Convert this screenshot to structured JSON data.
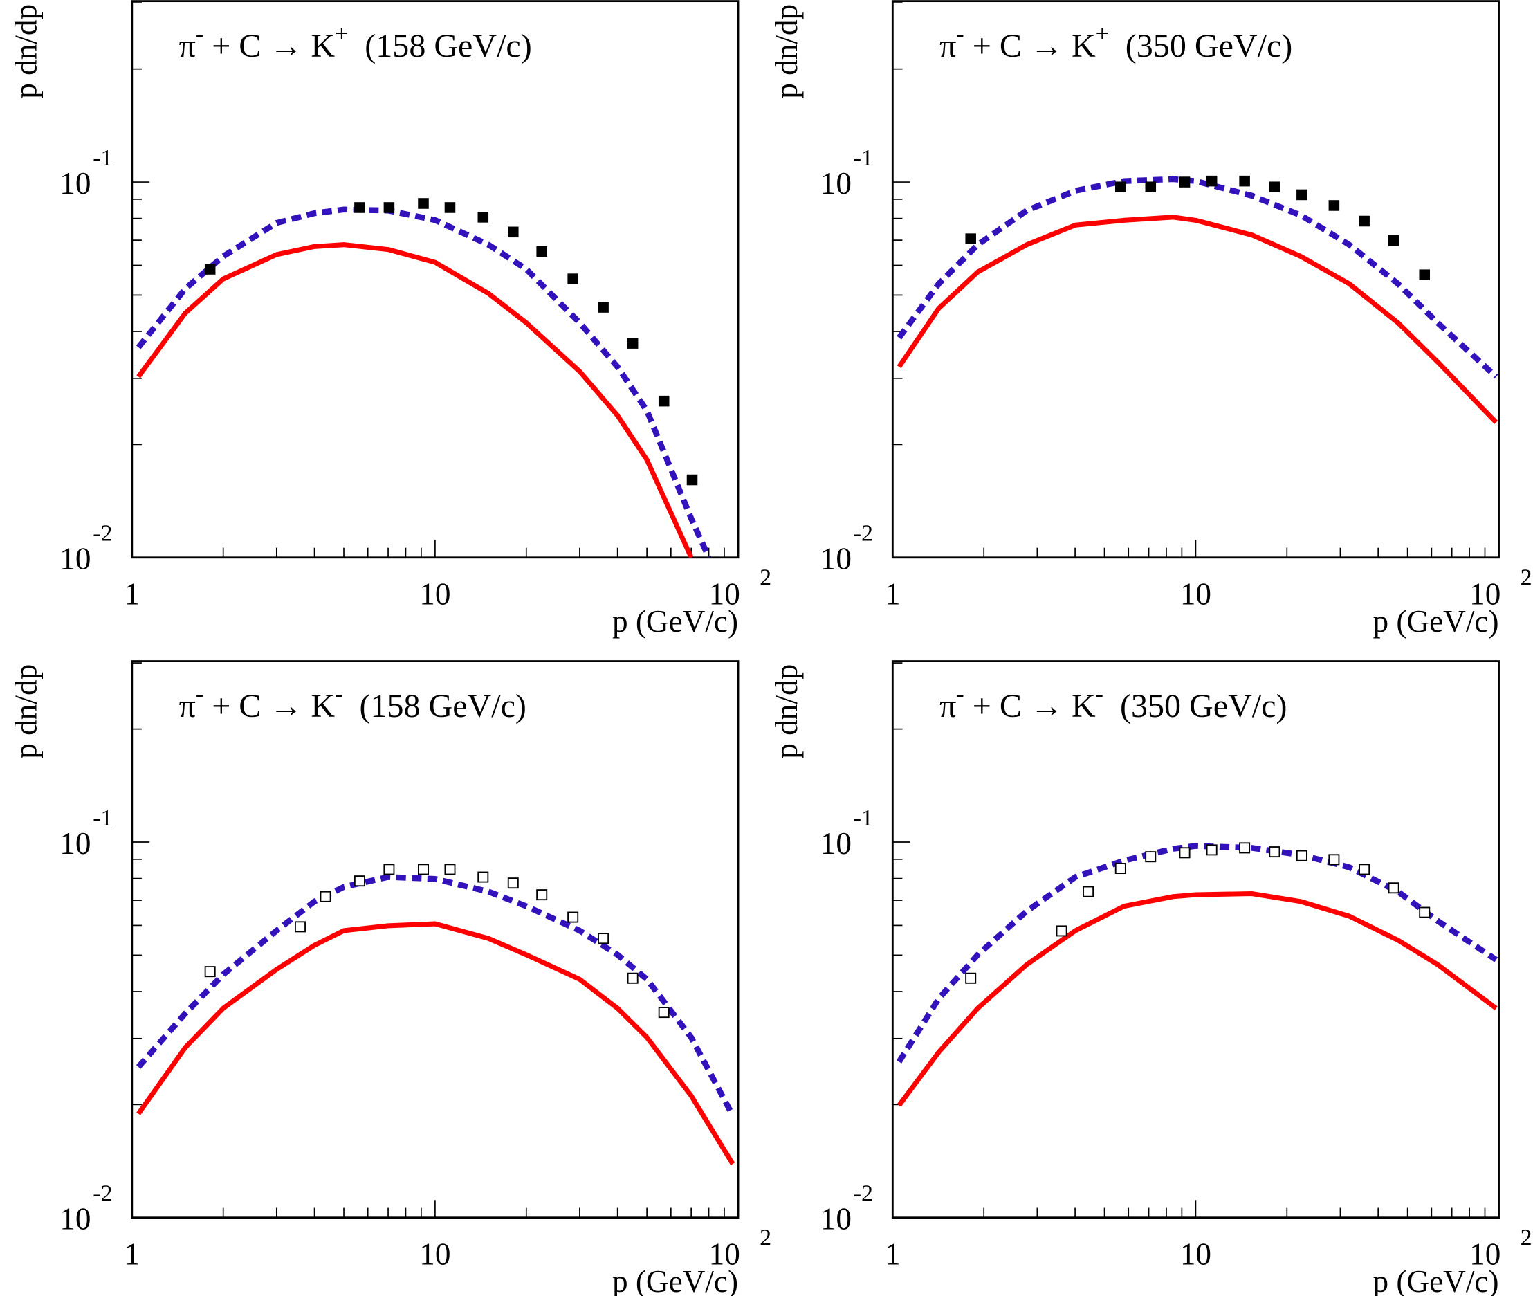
{
  "colors": {
    "solid_curve": "#ff0000",
    "dashed_curve": "#3311bb",
    "points": "#000000",
    "frame": "#000000"
  },
  "chart_data": [
    {
      "type": "line",
      "title": {
        "base1": "π",
        "sup1": "-",
        "mid": " + C → K",
        "sup2": "+",
        "tail": "  (158 GeV/c)"
      },
      "xlabel": "p  (GeV/c)",
      "ylabel": "p dn/dp",
      "xscale": "log",
      "yscale": "log",
      "xlim": [
        1,
        100
      ],
      "ylim": [
        0.01,
        0.305
      ],
      "xticks": [
        {
          "base": "1",
          "exp": ""
        },
        {
          "base": "10",
          "exp": ""
        },
        {
          "base": "10",
          "exp": "2"
        }
      ],
      "yticks": [
        {
          "base": "10",
          "exp": "-1"
        },
        {
          "base": "10",
          "exp": "-2"
        }
      ],
      "marker": "filled-square",
      "points": {
        "x": [
          1.81,
          5.64,
          7.05,
          9.15,
          11.2,
          14.4,
          18.1,
          22.5,
          28.5,
          35.9,
          44.9,
          56.9,
          70.5
        ],
        "y": [
          0.0586,
          0.0855,
          0.0855,
          0.0877,
          0.0855,
          0.0806,
          0.0736,
          0.0653,
          0.0552,
          0.0464,
          0.0372,
          0.0261,
          0.0161
        ]
      },
      "solid_curve": {
        "x": [
          1.05,
          1.5,
          2,
          3,
          4,
          5,
          7,
          10,
          15,
          20,
          30,
          40,
          50,
          70
        ],
        "y": [
          0.0303,
          0.0448,
          0.0552,
          0.0641,
          0.0673,
          0.0681,
          0.0661,
          0.0611,
          0.0505,
          0.0422,
          0.0313,
          0.0239,
          0.0182,
          0.01
        ]
      },
      "dashed_curve": {
        "x": [
          1.05,
          1.5,
          2,
          3,
          4,
          5,
          7,
          10,
          15,
          20,
          30,
          40,
          50,
          70,
          80
        ],
        "y": [
          0.0363,
          0.052,
          0.0634,
          0.0778,
          0.0826,
          0.0845,
          0.084,
          0.0792,
          0.0681,
          0.0586,
          0.0422,
          0.0322,
          0.0246,
          0.0127,
          0.01
        ]
      }
    },
    {
      "type": "line",
      "title": {
        "base1": "π",
        "sup1": "-",
        "mid": " + C → K",
        "sup2": "+",
        "tail": "  (350 GeV/c)"
      },
      "xlabel": "p  (GeV/c)",
      "ylabel": "p dn/dp",
      "xscale": "log",
      "yscale": "log",
      "xlim": [
        1,
        100
      ],
      "ylim": [
        0.01,
        0.305
      ],
      "xticks": [
        {
          "base": "1",
          "exp": ""
        },
        {
          "base": "10",
          "exp": ""
        },
        {
          "base": "10",
          "exp": "2"
        }
      ],
      "yticks": [
        {
          "base": "10",
          "exp": "-1"
        },
        {
          "base": "10",
          "exp": "-2"
        }
      ],
      "marker": "filled-square",
      "points": {
        "x": [
          1.81,
          5.65,
          7.1,
          9.2,
          11.3,
          14.5,
          18.2,
          22.4,
          28.6,
          36,
          45,
          56.9
        ],
        "y": [
          0.0706,
          0.097,
          0.097,
          0.1,
          0.1006,
          0.1006,
          0.097,
          0.0925,
          0.0866,
          0.0787,
          0.0698,
          0.0566
        ]
      },
      "solid_curve": {
        "x": [
          1.05,
          1.42,
          1.91,
          2.77,
          4.01,
          5.8,
          8.43,
          10,
          15.3,
          22.2,
          32.1,
          46.5,
          62.8,
          98
        ],
        "y": [
          0.0322,
          0.0461,
          0.0576,
          0.0681,
          0.0768,
          0.0791,
          0.0806,
          0.0791,
          0.0723,
          0.0634,
          0.0536,
          0.0422,
          0.0332,
          0.0229
        ]
      },
      "dashed_curve": {
        "x": [
          1.05,
          1.42,
          1.91,
          2.77,
          4.01,
          5.8,
          8.43,
          10,
          15.3,
          22.2,
          32.1,
          46.5,
          62.8,
          98
        ],
        "y": [
          0.0385,
          0.0536,
          0.0681,
          0.084,
          0.0948,
          0.1006,
          0.1018,
          0.1006,
          0.092,
          0.0816,
          0.0681,
          0.0536,
          0.0422,
          0.0303
        ]
      }
    },
    {
      "type": "line",
      "title": {
        "base1": "π",
        "sup1": "-",
        "mid": " + C → K",
        "sup2": "-",
        "tail": "  (158 GeV/c)"
      },
      "xlabel": "p  (GeV/c)",
      "ylabel": "p dn/dp",
      "xscale": "log",
      "yscale": "log",
      "xlim": [
        1,
        100
      ],
      "ylim": [
        0.01,
        0.305
      ],
      "xticks": [
        {
          "base": "1",
          "exp": ""
        },
        {
          "base": "10",
          "exp": ""
        },
        {
          "base": "10",
          "exp": "2"
        }
      ],
      "yticks": [
        {
          "base": "10",
          "exp": "-1"
        },
        {
          "base": "10",
          "exp": "-2"
        }
      ],
      "marker": "open-square",
      "points": {
        "x": [
          1.81,
          3.59,
          4.35,
          5.64,
          7.05,
          9.15,
          11.2,
          14.4,
          18.1,
          22.5,
          28.5,
          35.9,
          44.9,
          56.9
        ],
        "y": [
          0.0452,
          0.0595,
          0.0716,
          0.0788,
          0.0846,
          0.0846,
          0.0846,
          0.0807,
          0.0778,
          0.0724,
          0.0631,
          0.0554,
          0.0434,
          0.0352
        ]
      },
      "solid_curve": {
        "x": [
          1.05,
          1.5,
          2,
          3,
          4,
          5,
          7,
          10,
          15,
          20,
          30,
          40,
          50,
          70,
          96
        ],
        "y": [
          0.0189,
          0.0284,
          0.0361,
          0.0458,
          0.0531,
          0.0581,
          0.0599,
          0.0606,
          0.0554,
          0.0501,
          0.0431,
          0.0361,
          0.0302,
          0.0211,
          0.0139
        ]
      },
      "dashed_curve": {
        "x": [
          1.05,
          1.5,
          2,
          3,
          4,
          5,
          7,
          10,
          15,
          20,
          30,
          40,
          50,
          70,
          96
        ],
        "y": [
          0.0252,
          0.035,
          0.0444,
          0.0581,
          0.0695,
          0.076,
          0.0807,
          0.0798,
          0.0738,
          0.0675,
          0.0581,
          0.0501,
          0.0431,
          0.0302,
          0.0187
        ]
      }
    },
    {
      "type": "line",
      "title": {
        "base1": "π",
        "sup1": "-",
        "mid": " + C → K",
        "sup2": "-",
        "tail": "  (350 GeV/c)"
      },
      "xlabel": "p  (GeV/c)",
      "ylabel": "p dn/dp",
      "xscale": "log",
      "yscale": "log",
      "xlim": [
        1,
        100
      ],
      "ylim": [
        0.01,
        0.305
      ],
      "xticks": [
        {
          "base": "1",
          "exp": ""
        },
        {
          "base": "10",
          "exp": ""
        },
        {
          "base": "10",
          "exp": "2"
        }
      ],
      "yticks": [
        {
          "base": "10",
          "exp": "-1"
        },
        {
          "base": "10",
          "exp": "-2"
        }
      ],
      "marker": "open-square",
      "points": {
        "x": [
          1.81,
          3.61,
          4.42,
          5.65,
          7.1,
          9.2,
          11.3,
          14.5,
          18.2,
          22.4,
          28.6,
          36,
          45,
          56.9
        ],
        "y": [
          0.0434,
          0.058,
          0.0738,
          0.0851,
          0.0914,
          0.0937,
          0.0953,
          0.0965,
          0.0942,
          0.092,
          0.0898,
          0.0846,
          0.0755,
          0.065
        ]
      },
      "solid_curve": {
        "x": [
          1.05,
          1.42,
          1.91,
          2.77,
          4.01,
          5.8,
          8.43,
          10,
          15.3,
          22.2,
          32.1,
          46.5,
          62.8,
          98
        ],
        "y": [
          0.0199,
          0.0276,
          0.0361,
          0.0472,
          0.0581,
          0.0675,
          0.0716,
          0.0724,
          0.0729,
          0.0695,
          0.0635,
          0.0548,
          0.0472,
          0.0361
        ]
      },
      "dashed_curve": {
        "x": [
          1.05,
          1.42,
          1.91,
          2.77,
          4.01,
          5.8,
          8.43,
          10,
          15.3,
          22.2,
          32.1,
          46.5,
          62.8,
          98
        ],
        "y": [
          0.026,
          0.0383,
          0.0501,
          0.0655,
          0.0807,
          0.0893,
          0.096,
          0.0977,
          0.0965,
          0.0925,
          0.0857,
          0.0738,
          0.0617,
          0.0486
        ]
      }
    }
  ]
}
